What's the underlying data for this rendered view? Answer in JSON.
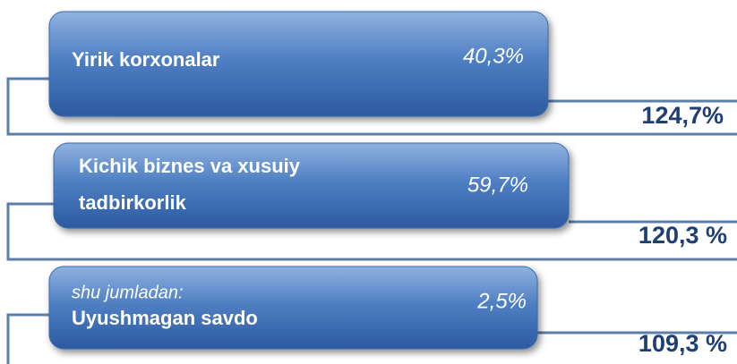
{
  "rows": [
    {
      "label": "Yirik korxonalar",
      "share": "40,3%",
      "growth": "124,7%"
    },
    {
      "label": [
        "Kichik biznes va xusuiy",
        "tadbirkorlik"
      ],
      "share": "59,7%",
      "growth": "120,3 %"
    },
    {
      "note": "shu jumladan:",
      "label": "Uyushmagan savdo",
      "share": "2,5%",
      "growth": "109,3 %"
    }
  ]
}
